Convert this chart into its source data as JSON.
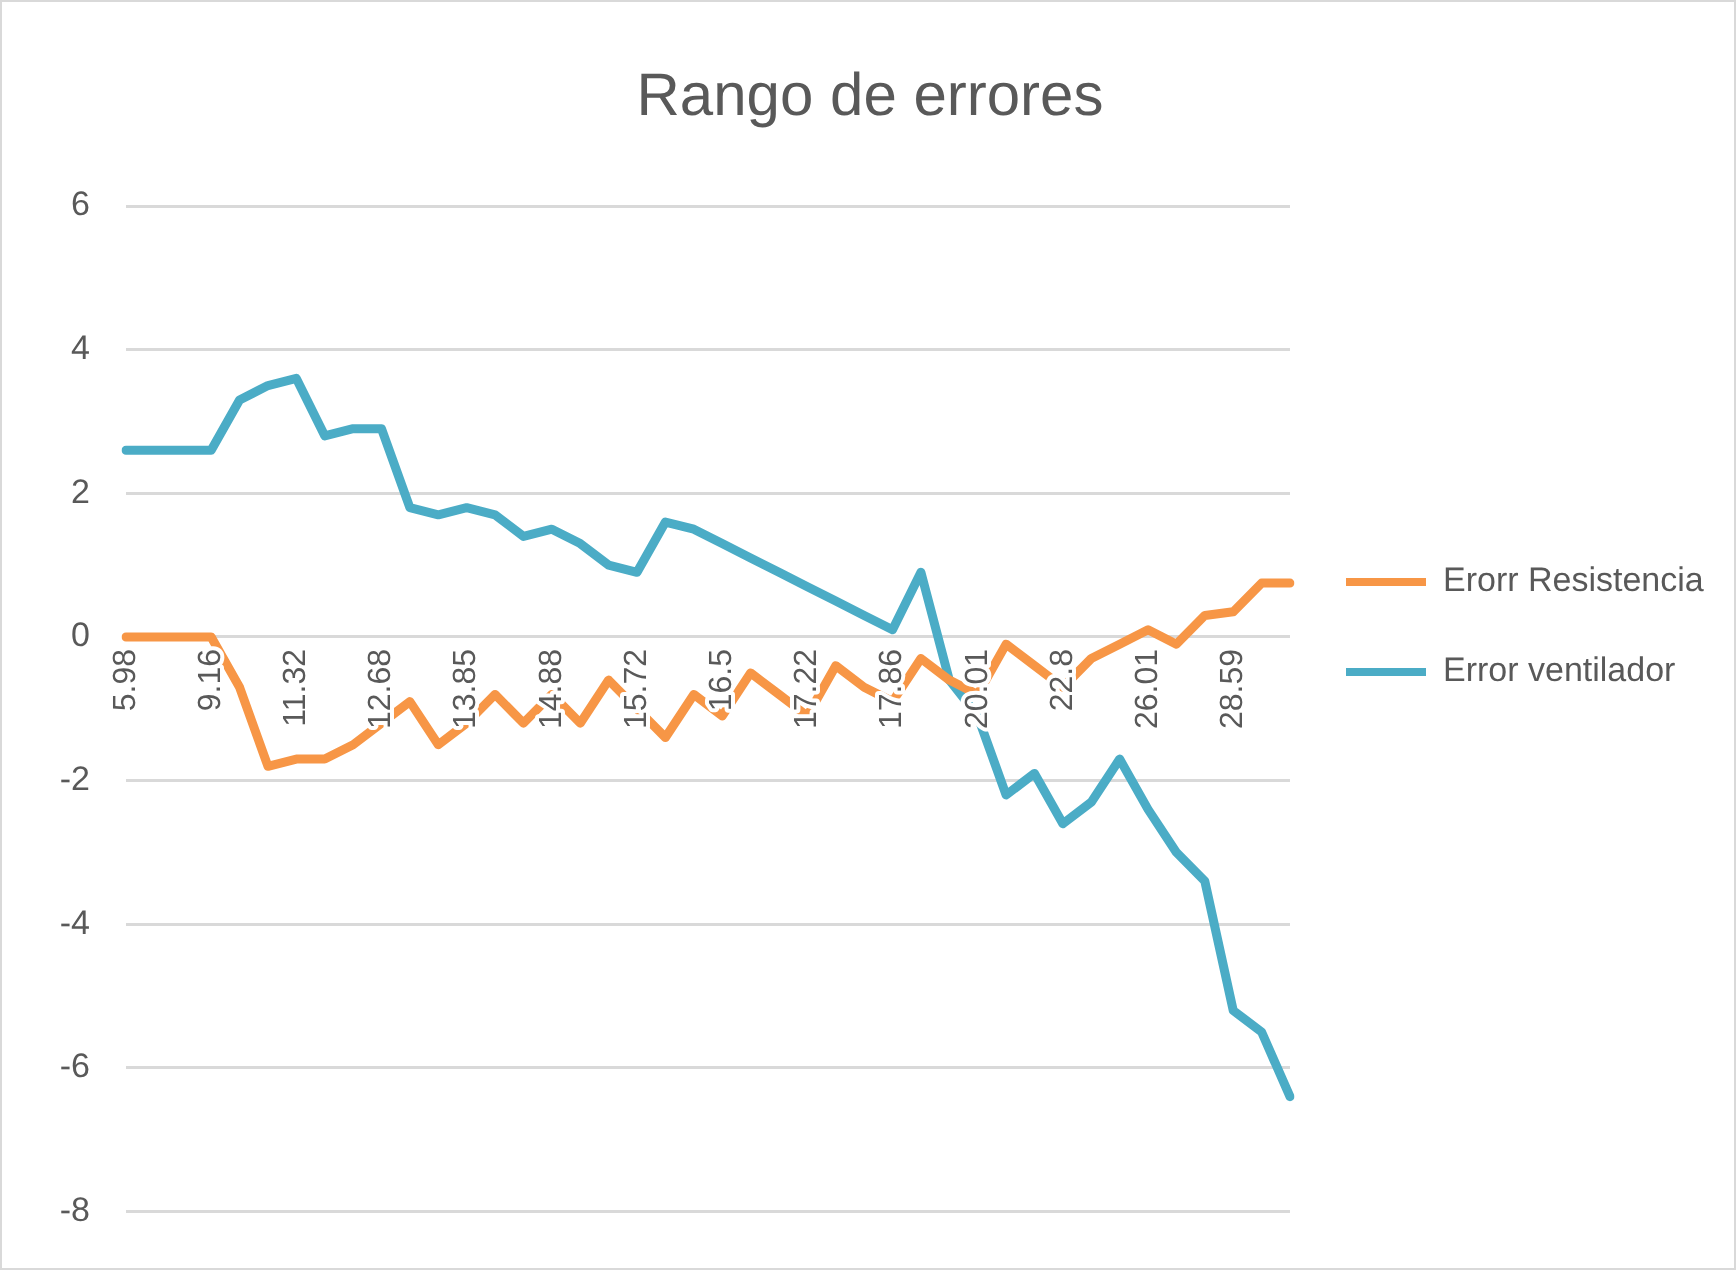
{
  "chart_data": {
    "type": "line",
    "title": "Rango de errores",
    "categories": [
      "5.98",
      null,
      null,
      "9.16",
      null,
      null,
      "11.32",
      null,
      null,
      "12.68",
      null,
      null,
      "13.85",
      null,
      null,
      "14.88",
      null,
      null,
      "15.72",
      null,
      null,
      "16.5",
      null,
      null,
      "17.22",
      null,
      null,
      "17.86",
      null,
      null,
      "20.01",
      null,
      null,
      "22.8",
      null,
      null,
      "26.01",
      null,
      null,
      "28.59",
      null,
      null
    ],
    "series": [
      {
        "name": "Erorr Resistencia",
        "color": "#f79646",
        "values": [
          0,
          0,
          0,
          0,
          -0.7,
          -1.8,
          -1.7,
          -1.7,
          -1.5,
          -1.2,
          -0.9,
          -1.5,
          -1.2,
          -0.8,
          -1.2,
          -0.8,
          -1.2,
          -0.6,
          -1.0,
          -1.4,
          -0.8,
          -1.1,
          -0.5,
          -0.8,
          -1.1,
          -0.4,
          -0.7,
          -0.9,
          -0.3,
          -0.6,
          -0.8,
          -0.1,
          -0.4,
          -0.7,
          -0.3,
          -0.1,
          0.1,
          -0.1,
          0.3,
          0.35,
          0.75,
          0.75
        ]
      },
      {
        "name": "Error ventilador",
        "color": "#4bacc6",
        "values": [
          2.6,
          2.6,
          2.6,
          2.6,
          3.3,
          3.5,
          3.6,
          2.8,
          2.9,
          2.9,
          1.8,
          1.7,
          1.8,
          1.7,
          1.4,
          1.5,
          1.3,
          1.0,
          0.9,
          1.6,
          1.5,
          1.3,
          1.1,
          0.9,
          0.7,
          0.5,
          0.3,
          0.1,
          0.9,
          -0.6,
          -1.1,
          -2.2,
          -1.9,
          -2.6,
          -2.3,
          -1.7,
          -2.4,
          -3.0,
          -3.4,
          -5.2,
          -5.5,
          -6.4
        ]
      }
    ],
    "ylim": [
      -8,
      6
    ],
    "yticks": [
      -8,
      -6,
      -4,
      -2,
      0,
      2,
      4,
      6
    ],
    "grid": "y",
    "legend": "right",
    "marker": "none",
    "line_style": "solid"
  }
}
